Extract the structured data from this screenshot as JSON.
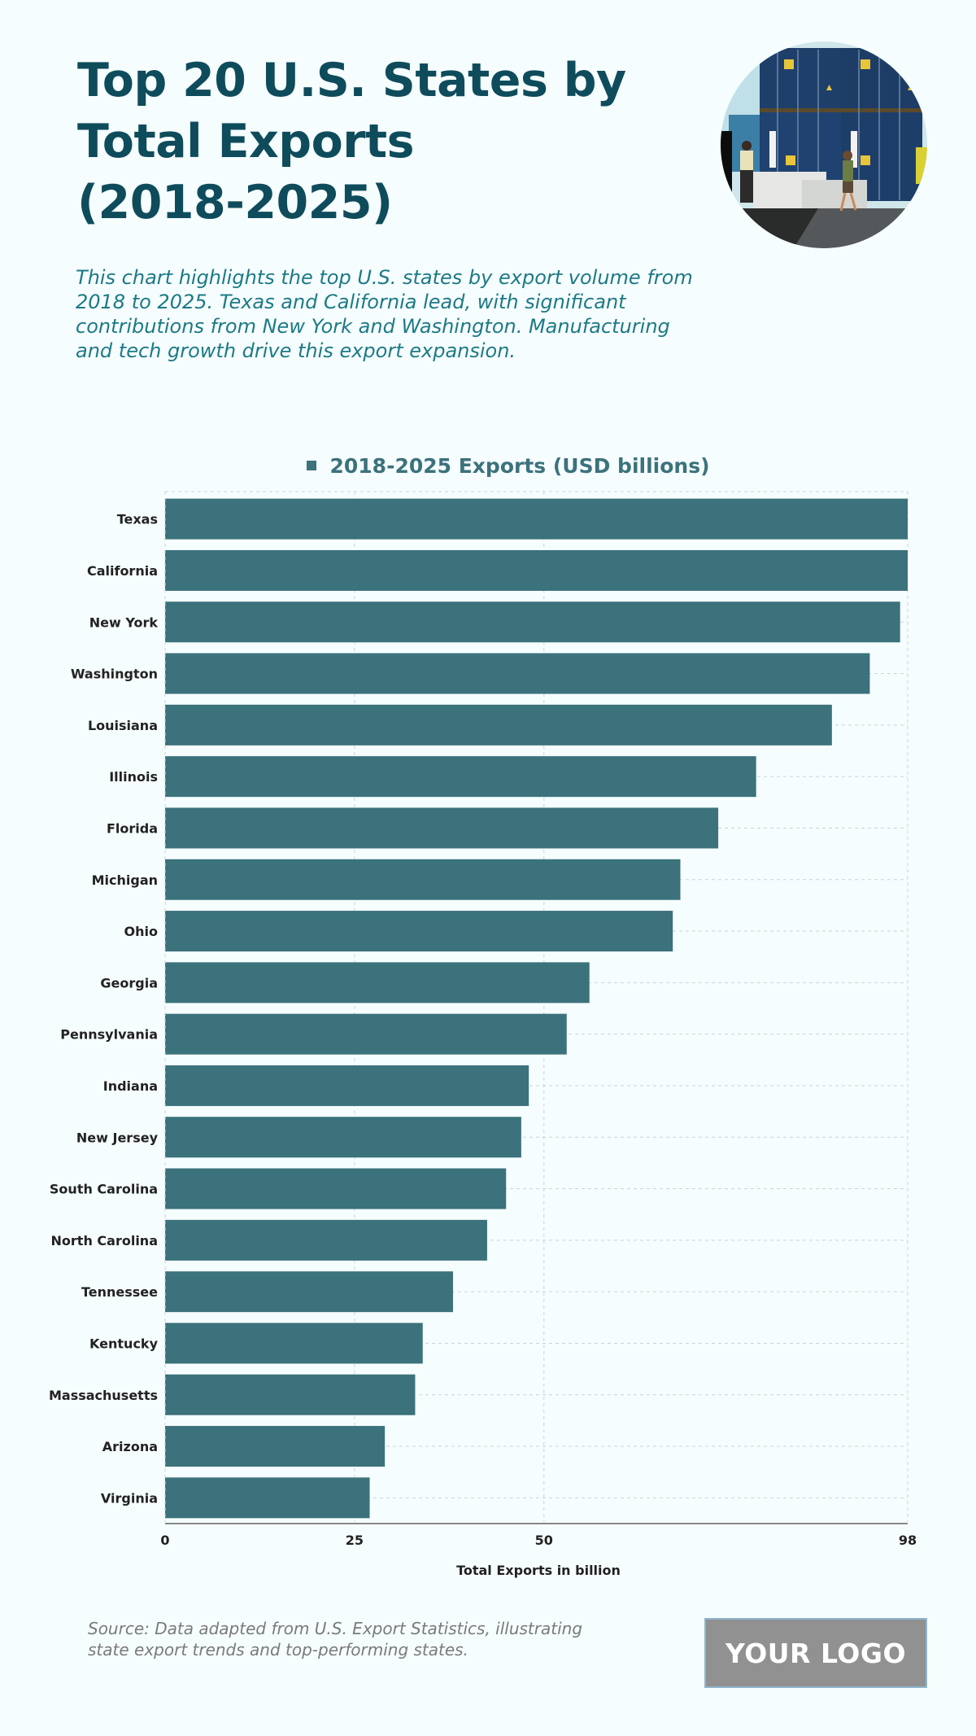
{
  "header": {
    "title_lines": [
      "Top 20 U.S. States by",
      "Total Exports",
      "(2018-2025)"
    ],
    "subtitle_lines": [
      "This chart highlights the top U.S. states by export volume from",
      "2018 to 2025. Texas and California lead, with significant",
      "contributions from New York and Washington. Manufacturing",
      "and tech growth drive this export expansion."
    ],
    "photo_icon": "shipping-containers-photo"
  },
  "colors": {
    "bar": "#3b727c",
    "title": "#0e4c5c",
    "subtitle": "#1c7a86",
    "grid": "#c9d3d6",
    "label": "#222222"
  },
  "chart_data": {
    "type": "bar",
    "orientation": "horizontal",
    "title": "Top 20 U.S. States by Total Exports (2018-2025)",
    "legend": [
      "2018-2025 Exports (USD billions)"
    ],
    "legend_position": "top-center",
    "xlabel": "Total Exports in billion",
    "ylabel": "",
    "xlim": [
      0,
      98
    ],
    "x_ticks": [
      0,
      25,
      50,
      98
    ],
    "grid": true,
    "categories": [
      "Texas",
      "California",
      "New York",
      "Washington",
      "Louisiana",
      "Illinois",
      "Florida",
      "Michigan",
      "Ohio",
      "Georgia",
      "Pennsylvania",
      "Indiana",
      "New Jersey",
      "South Carolina",
      "North Carolina",
      "Tennessee",
      "Kentucky",
      "Massachusetts",
      "Arizona",
      "Virginia"
    ],
    "series": [
      {
        "name": "2018-2025 Exports (USD billions)",
        "values": [
          98,
          98,
          97,
          93,
          88,
          78,
          73,
          68,
          67,
          56,
          53,
          48,
          47,
          45,
          42.5,
          38,
          34,
          33,
          29,
          27
        ]
      }
    ]
  },
  "footer": {
    "source_lines": [
      "Source: Data adapted from U.S. Export Statistics, illustrating",
      "state export trends and top-performing states."
    ],
    "logo_text": "YOUR LOGO"
  }
}
